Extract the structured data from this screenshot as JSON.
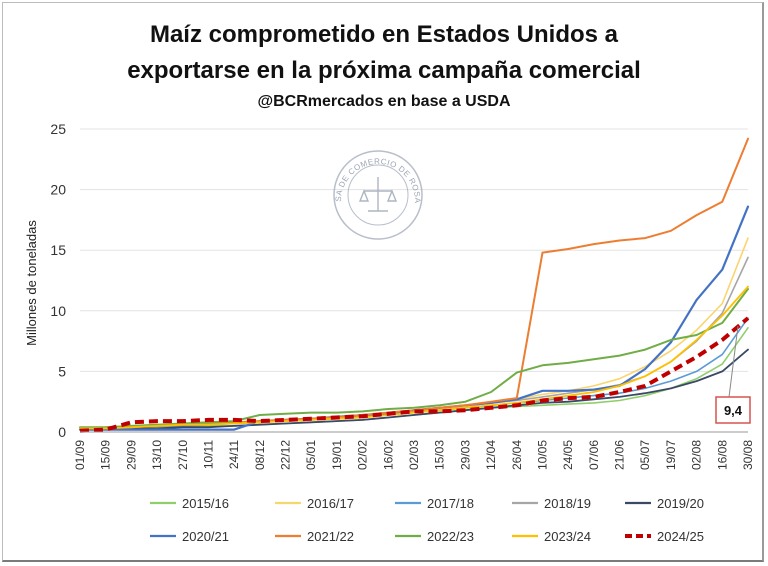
{
  "chart_data": {
    "type": "line",
    "title_line1": "Maíz comprometido en Estados Unidos a",
    "title_line2": "exportarse en la próxima campaña comercial",
    "subtitle": "@BCRmercados en base a USDA",
    "ylabel": "Millones de toneladas",
    "xlabel": "",
    "ylim": [
      0,
      25
    ],
    "yticks": [
      0,
      5,
      10,
      15,
      20,
      25
    ],
    "categories": [
      "01/09",
      "15/09",
      "29/09",
      "13/10",
      "27/10",
      "10/11",
      "24/11",
      "08/12",
      "22/12",
      "05/01",
      "19/01",
      "02/02",
      "16/02",
      "02/03",
      "15/03",
      "29/03",
      "12/04",
      "26/04",
      "10/05",
      "24/05",
      "07/06",
      "21/06",
      "05/07",
      "19/07",
      "02/08",
      "16/08",
      "30/08"
    ],
    "watermark": "BOLSA DE COMERCIO DE ROSARIO",
    "annotation": {
      "label": "9,4",
      "series": "2024/25"
    },
    "series": [
      {
        "name": "2015/16",
        "color": "#8fce6a",
        "width": 1.6,
        "dash": false,
        "values": [
          0.3,
          0.3,
          0.4,
          0.4,
          0.4,
          0.5,
          0.5,
          0.6,
          0.7,
          0.8,
          0.9,
          1.0,
          1.2,
          1.4,
          1.6,
          1.8,
          2.0,
          2.1,
          2.2,
          2.3,
          2.4,
          2.6,
          3.0,
          3.6,
          4.4,
          5.6,
          8.6
        ]
      },
      {
        "name": "2016/17",
        "color": "#f9d56e",
        "width": 1.6,
        "dash": false,
        "values": [
          0.3,
          0.4,
          0.5,
          0.6,
          0.6,
          0.7,
          0.8,
          0.9,
          1.0,
          1.1,
          1.2,
          1.3,
          1.5,
          1.7,
          1.9,
          2.1,
          2.4,
          2.7,
          3.1,
          3.4,
          3.8,
          4.4,
          5.4,
          6.7,
          8.4,
          10.6,
          16.0
        ]
      },
      {
        "name": "2017/18",
        "color": "#5b9bd5",
        "width": 1.6,
        "dash": false,
        "values": [
          0.3,
          0.3,
          0.4,
          0.5,
          0.5,
          0.6,
          0.7,
          0.8,
          0.9,
          1.0,
          1.1,
          1.2,
          1.4,
          1.6,
          1.8,
          2.0,
          2.2,
          2.4,
          2.6,
          2.8,
          3.0,
          3.2,
          3.6,
          4.2,
          5.0,
          6.4,
          9.4
        ]
      },
      {
        "name": "2018/19",
        "color": "#a6a6a6",
        "width": 1.6,
        "dash": false,
        "values": [
          0.3,
          0.3,
          0.4,
          0.5,
          0.6,
          0.7,
          0.8,
          0.9,
          1.0,
          1.1,
          1.3,
          1.4,
          1.6,
          1.8,
          2.0,
          2.2,
          2.4,
          2.6,
          2.9,
          3.2,
          3.5,
          3.9,
          4.6,
          5.8,
          7.5,
          9.8,
          14.4
        ]
      },
      {
        "name": "2019/20",
        "color": "#3a4a66",
        "width": 1.8,
        "dash": false,
        "values": [
          0.2,
          0.2,
          0.3,
          0.3,
          0.4,
          0.4,
          0.5,
          0.6,
          0.7,
          0.8,
          0.9,
          1.0,
          1.2,
          1.4,
          1.6,
          1.8,
          2.0,
          2.2,
          2.4,
          2.5,
          2.7,
          2.9,
          3.2,
          3.6,
          4.2,
          5.0,
          6.8
        ]
      },
      {
        "name": "2020/21",
        "color": "#4472c4",
        "width": 2.2,
        "dash": false,
        "values": [
          0.2,
          0.2,
          0.2,
          0.2,
          0.2,
          0.2,
          0.2,
          0.9,
          1.0,
          1.1,
          1.2,
          1.4,
          1.5,
          1.8,
          2.0,
          2.2,
          2.4,
          2.7,
          3.4,
          3.4,
          3.5,
          3.8,
          5.2,
          7.4,
          10.9,
          13.4,
          18.6
        ]
      },
      {
        "name": "2021/22",
        "color": "#ed7d31",
        "width": 2.0,
        "dash": false,
        "values": [
          0.3,
          0.3,
          0.4,
          0.5,
          0.6,
          0.7,
          0.8,
          0.9,
          1.0,
          1.1,
          1.2,
          1.4,
          1.6,
          1.8,
          2.0,
          2.2,
          2.5,
          2.8,
          14.8,
          15.1,
          15.5,
          15.8,
          16.0,
          16.6,
          17.9,
          19.0,
          24.2
        ]
      },
      {
        "name": "2022/23",
        "color": "#70ad47",
        "width": 2.0,
        "dash": false,
        "values": [
          0.4,
          0.4,
          0.5,
          0.6,
          0.7,
          0.8,
          0.9,
          1.4,
          1.5,
          1.6,
          1.6,
          1.7,
          1.9,
          2.0,
          2.2,
          2.5,
          3.3,
          4.9,
          5.5,
          5.7,
          6.0,
          6.3,
          6.8,
          7.6,
          8.0,
          9.0,
          11.8
        ]
      },
      {
        "name": "2023/24",
        "color": "#ffc000",
        "width": 1.8,
        "dash": false,
        "values": [
          0.3,
          0.3,
          0.4,
          0.5,
          0.6,
          0.6,
          0.7,
          0.8,
          0.9,
          1.0,
          1.1,
          1.2,
          1.4,
          1.6,
          1.8,
          2.0,
          2.2,
          2.4,
          2.7,
          3.0,
          3.3,
          3.8,
          4.6,
          5.8,
          7.6,
          9.6,
          12.0
        ]
      },
      {
        "name": "2024/25",
        "color": "#c00000",
        "width": 4.0,
        "dash": true,
        "values": [
          0.1,
          0.2,
          0.8,
          0.9,
          0.9,
          1.0,
          1.0,
          0.9,
          1.0,
          1.1,
          1.2,
          1.3,
          1.5,
          1.7,
          1.7,
          1.8,
          2.0,
          2.2,
          2.6,
          2.8,
          2.9,
          3.3,
          3.8,
          5.0,
          6.2,
          7.6,
          9.4
        ]
      }
    ],
    "legend_rows": [
      [
        "2015/16",
        "2016/17",
        "2017/18",
        "2018/19",
        "2019/20"
      ],
      [
        "2020/21",
        "2021/22",
        "2022/23",
        "2023/24",
        "2024/25"
      ]
    ]
  }
}
